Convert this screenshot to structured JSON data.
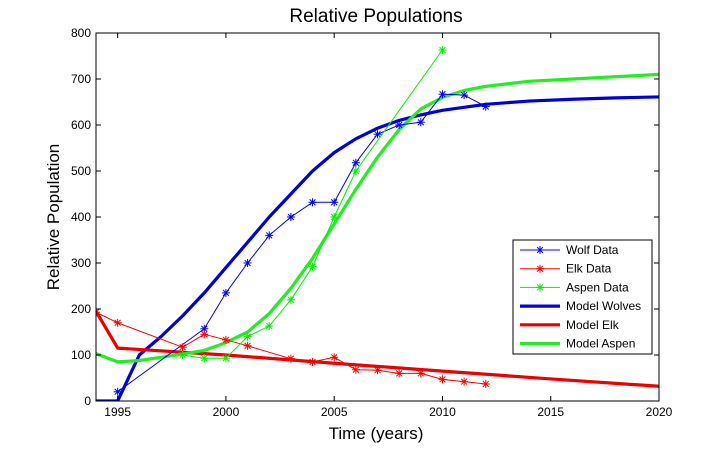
{
  "chart_data": {
    "type": "line",
    "title": "Relative Populations",
    "xlabel": "Time (years)",
    "ylabel": "Relative Population",
    "xlim": [
      1994,
      2020
    ],
    "ylim": [
      0,
      800
    ],
    "xticks": [
      1995,
      2000,
      2005,
      2010,
      2015,
      2020
    ],
    "yticks": [
      0,
      100,
      200,
      300,
      400,
      500,
      600,
      700,
      800
    ],
    "grid": false,
    "legend_position": "lower-right",
    "series": [
      {
        "name": "Wolf Data",
        "style": "line-marker",
        "color": "#0000ff",
        "x": [
          1995,
          1999,
          2000,
          2001,
          2002,
          2003,
          2004,
          2005,
          2006,
          2007,
          2008,
          2009,
          2010,
          2011,
          2012
        ],
        "y": [
          20,
          157,
          235,
          300,
          360,
          400,
          432,
          432,
          518,
          580,
          600,
          606,
          667,
          665,
          640
        ]
      },
      {
        "name": "Elk Data",
        "style": "line-marker",
        "color": "#ff0000",
        "x": [
          1994,
          1995,
          1998,
          1999,
          2000,
          2001,
          2003,
          2004,
          2005,
          2006,
          2007,
          2008,
          2009,
          2010,
          2011,
          2012
        ],
        "y": [
          193,
          170,
          117,
          145,
          133,
          120,
          92,
          85,
          95,
          68,
          67,
          60,
          60,
          47,
          42,
          37
        ]
      },
      {
        "name": "Aspen Data",
        "style": "line-marker",
        "color": "#00ee00",
        "x": [
          1998,
          1999,
          2000,
          2001,
          2002,
          2003,
          2004,
          2005,
          2006,
          2010
        ],
        "y": [
          100,
          93,
          93,
          140,
          163,
          220,
          292,
          400,
          500,
          763
        ]
      },
      {
        "name": "Model Wolves",
        "style": "line",
        "color": "#0000dd",
        "x": [
          1994,
          1995,
          1996,
          1997,
          1998,
          1999,
          2000,
          2001,
          2002,
          2003,
          2004,
          2005,
          2006,
          2007,
          2008,
          2009,
          2010,
          2012,
          2014,
          2016,
          2018,
          2020
        ],
        "y": [
          0,
          0,
          100,
          140,
          185,
          235,
          290,
          345,
          400,
          450,
          500,
          540,
          570,
          593,
          610,
          622,
          632,
          645,
          652,
          656,
          659,
          661
        ]
      },
      {
        "name": "Model Elk",
        "style": "line",
        "color": "#ee0000",
        "x": [
          1994,
          1995,
          2000,
          2005,
          2010,
          2015,
          2020
        ],
        "y": [
          195,
          115,
          100,
          82,
          65,
          48,
          32
        ]
      },
      {
        "name": "Model Aspen",
        "style": "line",
        "color": "#22ee22",
        "x": [
          1994,
          1995,
          1996,
          1997,
          1998,
          1999,
          2000,
          2001,
          2002,
          2003,
          2004,
          2005,
          2006,
          2007,
          2008,
          2009,
          2010,
          2011,
          2012,
          2014,
          2016,
          2018,
          2020
        ],
        "y": [
          103,
          85,
          88,
          95,
          102,
          110,
          127,
          150,
          190,
          245,
          310,
          385,
          460,
          530,
          590,
          635,
          660,
          675,
          684,
          695,
          700,
          705,
          710
        ]
      }
    ]
  }
}
